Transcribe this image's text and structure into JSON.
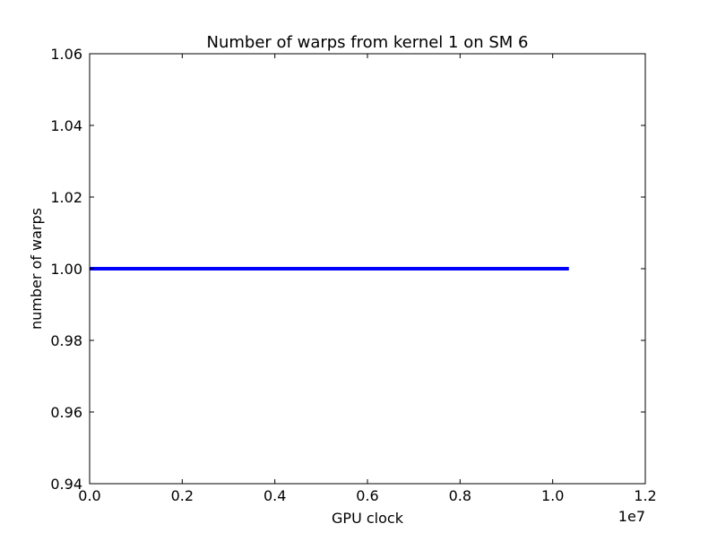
{
  "chart_data": {
    "type": "line",
    "title": "Number of warps from kernel 1 on SM 6",
    "xlabel": "GPU clock",
    "ylabel": "number of warps",
    "x_offset_label": "1e7",
    "xlim": [
      0.0,
      1.2
    ],
    "ylim": [
      0.94,
      1.06
    ],
    "x_ticks": [
      0.0,
      0.2,
      0.4,
      0.6,
      0.8,
      1.0,
      1.2
    ],
    "x_tick_labels": [
      "0.0",
      "0.2",
      "0.4",
      "0.6",
      "0.8",
      "1.0",
      "1.2"
    ],
    "y_ticks": [
      0.94,
      0.96,
      0.98,
      1.0,
      1.02,
      1.04,
      1.06
    ],
    "y_tick_labels": [
      "0.94",
      "0.96",
      "0.98",
      "1.00",
      "1.02",
      "1.04",
      "1.06"
    ],
    "grid": false,
    "series": [
      {
        "color": "#0000ff",
        "x": [
          0.0,
          1.035
        ],
        "y": [
          1.0,
          1.0
        ]
      }
    ]
  }
}
